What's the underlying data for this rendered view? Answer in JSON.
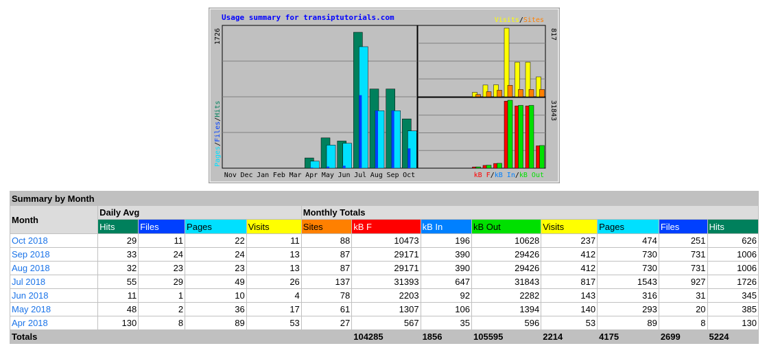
{
  "colors": {
    "hits": "#00805c",
    "files": "#0040ff",
    "pages": "#00e0ff",
    "visits": "#ffff00",
    "sites": "#ff8000",
    "kbf": "#ff0000",
    "kbin": "#0080ff",
    "kbout": "#00e000",
    "panel": "#c0c0c0",
    "title_text": "#0000ff"
  },
  "chart_data": {
    "type": "bar",
    "title": "Usage summary for transiptutorials.com",
    "left_panel": {
      "scale_label": "1726",
      "legend": [
        "Pages",
        "Files",
        "Hits"
      ],
      "categories": [
        "Nov",
        "Dec",
        "Jan",
        "Feb",
        "Mar",
        "Apr",
        "May",
        "Jun",
        "Jul",
        "Aug",
        "Sep",
        "Oct"
      ],
      "ylim": [
        0,
        1726
      ],
      "series": [
        {
          "name": "Hits",
          "values": [
            0,
            0,
            0,
            0,
            0,
            130,
            385,
            345,
            1726,
            1006,
            1006,
            626
          ]
        },
        {
          "name": "Pages",
          "values": [
            0,
            0,
            0,
            0,
            0,
            89,
            293,
            316,
            1543,
            730,
            730,
            474
          ]
        },
        {
          "name": "Files",
          "values": [
            0,
            0,
            0,
            0,
            0,
            8,
            20,
            31,
            927,
            731,
            731,
            251
          ]
        }
      ]
    },
    "right_top_panel": {
      "scale_label": "817",
      "legend": [
        "Visits",
        "Sites"
      ],
      "ylim": [
        0,
        817
      ],
      "series": [
        {
          "name": "Visits",
          "values": [
            0,
            0,
            0,
            0,
            0,
            53,
            140,
            143,
            817,
            412,
            412,
            237
          ]
        },
        {
          "name": "Sites",
          "values": [
            0,
            0,
            0,
            0,
            0,
            27,
            61,
            78,
            137,
            87,
            87,
            88
          ]
        }
      ]
    },
    "right_bottom_panel": {
      "scale_label": "31843",
      "legend": [
        "kB F",
        "kB In",
        "kB Out"
      ],
      "ylim": [
        0,
        31843
      ],
      "series": [
        {
          "name": "kB F",
          "values": [
            0,
            0,
            0,
            0,
            0,
            567,
            1307,
            2203,
            31393,
            29171,
            29171,
            10473
          ]
        },
        {
          "name": "kB Out",
          "values": [
            0,
            0,
            0,
            0,
            0,
            596,
            1394,
            2282,
            31843,
            29426,
            29426,
            10628
          ]
        }
      ]
    }
  },
  "table": {
    "title": "Summary by Month",
    "group_month": "Month",
    "group_daily": "Daily Avg",
    "group_monthly": "Monthly Totals",
    "headers": [
      "Hits",
      "Files",
      "Pages",
      "Visits",
      "Sites",
      "kB F",
      "kB In",
      "kB Out",
      "Visits",
      "Pages",
      "Files",
      "Hits"
    ],
    "rows": [
      {
        "month": "Oct 2018",
        "values": [
          "29",
          "11",
          "22",
          "11",
          "88",
          "10473",
          "196",
          "10628",
          "237",
          "474",
          "251",
          "626"
        ]
      },
      {
        "month": "Sep 2018",
        "values": [
          "33",
          "24",
          "24",
          "13",
          "87",
          "29171",
          "390",
          "29426",
          "412",
          "730",
          "731",
          "1006"
        ]
      },
      {
        "month": "Aug 2018",
        "values": [
          "32",
          "23",
          "23",
          "13",
          "87",
          "29171",
          "390",
          "29426",
          "412",
          "730",
          "731",
          "1006"
        ]
      },
      {
        "month": "Jul 2018",
        "values": [
          "55",
          "29",
          "49",
          "26",
          "137",
          "31393",
          "647",
          "31843",
          "817",
          "1543",
          "927",
          "1726"
        ]
      },
      {
        "month": "Jun 2018",
        "values": [
          "11",
          "1",
          "10",
          "4",
          "78",
          "2203",
          "92",
          "2282",
          "143",
          "316",
          "31",
          "345"
        ]
      },
      {
        "month": "May 2018",
        "values": [
          "48",
          "2",
          "36",
          "17",
          "61",
          "1307",
          "106",
          "1394",
          "140",
          "293",
          "20",
          "385"
        ]
      },
      {
        "month": "Apr 2018",
        "values": [
          "130",
          "8",
          "89",
          "53",
          "27",
          "567",
          "35",
          "596",
          "53",
          "89",
          "8",
          "130"
        ]
      }
    ],
    "totals_label": "Totals",
    "totals": [
      "104285",
      "1856",
      "105595",
      "2214",
      "4175",
      "2699",
      "5224"
    ]
  }
}
